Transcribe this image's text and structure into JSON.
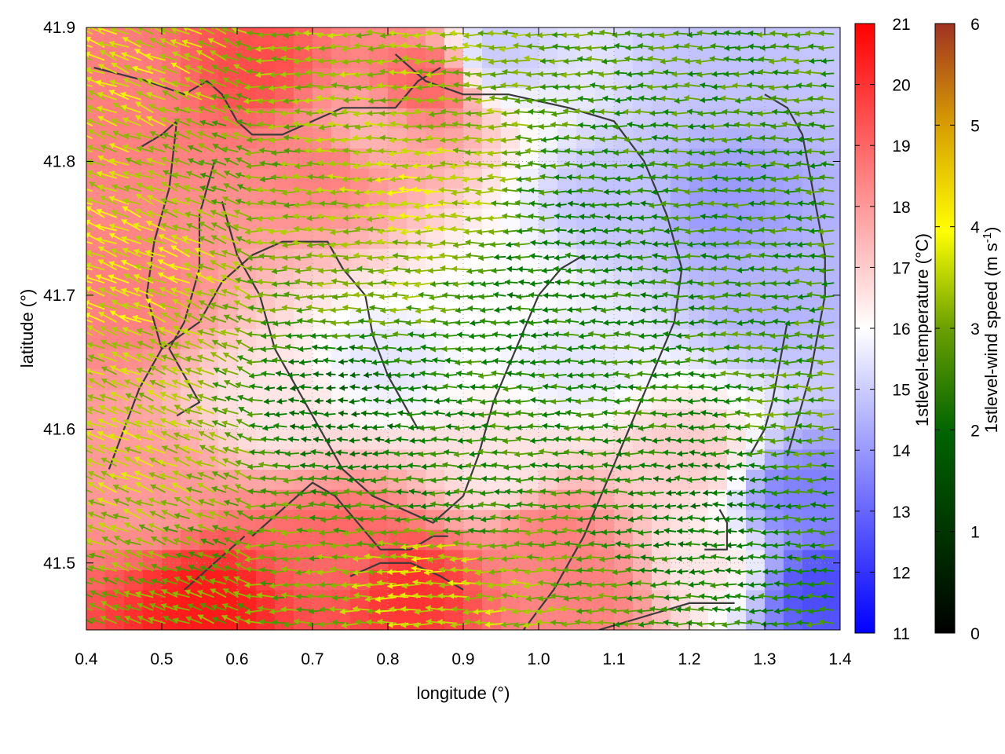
{
  "chart_data": {
    "type": "heatmap",
    "subtype": "field-map-with-wind-vectors",
    "title": "",
    "xlabel": "longitude (°)",
    "ylabel": "latitude (°)",
    "xlim": [
      0.4,
      1.4
    ],
    "ylim": [
      41.45,
      41.9
    ],
    "x_ticks": [
      0.4,
      0.5,
      0.6,
      0.7,
      0.8,
      0.9,
      1.0,
      1.1,
      1.2,
      1.3,
      1.4
    ],
    "x_tick_labels": [
      "0.4",
      "0.5",
      "0.6",
      "0.7",
      "0.8",
      "0.9",
      "1.0",
      "1.1",
      "1.2",
      "1.3",
      "1.4"
    ],
    "y_ticks": [
      41.5,
      41.6,
      41.7,
      41.8,
      41.9
    ],
    "y_tick_labels": [
      "41.5",
      "41.6",
      "41.7",
      "41.8",
      "41.9"
    ],
    "grid": true,
    "temperature": {
      "label": "1stlevel-temperature (°C)",
      "range": [
        11,
        21
      ],
      "ticks": [
        "11",
        "12",
        "13",
        "14",
        "15",
        "16",
        "17",
        "18",
        "19",
        "20",
        "21"
      ],
      "colormap": [
        "#0000ff",
        "#ffffff",
        "#ff0000"
      ],
      "field": [
        {
          "x": 0.45,
          "y": 41.85,
          "value": 18.5
        },
        {
          "x": 0.62,
          "y": 41.87,
          "value": 19.5
        },
        {
          "x": 0.85,
          "y": 41.86,
          "value": 19.0
        },
        {
          "x": 0.72,
          "y": 41.8,
          "value": 18.5
        },
        {
          "x": 0.45,
          "y": 41.7,
          "value": 18.5
        },
        {
          "x": 0.48,
          "y": 41.55,
          "value": 18.0
        },
        {
          "x": 0.56,
          "y": 41.47,
          "value": 20.5
        },
        {
          "x": 0.83,
          "y": 41.48,
          "value": 20.0
        },
        {
          "x": 0.73,
          "y": 41.51,
          "value": 19.0
        },
        {
          "x": 1.02,
          "y": 41.52,
          "value": 18.5
        },
        {
          "x": 1.07,
          "y": 41.48,
          "value": 18.5
        },
        {
          "x": 0.77,
          "y": 41.82,
          "value": 17.5
        },
        {
          "x": 0.65,
          "y": 41.62,
          "value": 16.5
        },
        {
          "x": 0.8,
          "y": 41.65,
          "value": 15.5
        },
        {
          "x": 0.95,
          "y": 41.7,
          "value": 16.0
        },
        {
          "x": 1.05,
          "y": 41.65,
          "value": 15.5
        },
        {
          "x": 1.1,
          "y": 41.77,
          "value": 14.8
        },
        {
          "x": 1.25,
          "y": 41.77,
          "value": 14.0
        },
        {
          "x": 1.3,
          "y": 41.7,
          "value": 14.5
        },
        {
          "x": 1.25,
          "y": 41.88,
          "value": 14.8
        },
        {
          "x": 0.95,
          "y": 41.88,
          "value": 15.0
        },
        {
          "x": 1.35,
          "y": 41.55,
          "value": 13.5
        },
        {
          "x": 1.38,
          "y": 41.48,
          "value": 12.5
        },
        {
          "x": 1.2,
          "y": 41.58,
          "value": 17.0
        },
        {
          "x": 1.22,
          "y": 41.5,
          "value": 16.5
        },
        {
          "x": 0.95,
          "y": 41.57,
          "value": 16.5
        }
      ]
    },
    "wind_speed": {
      "label": "1stlevel-wind speed (m s-1)",
      "label_base": "1stlevel-wind speed (m s",
      "label_sup": "-1",
      "label_end": ")",
      "range": [
        0,
        6
      ],
      "ticks": [
        "0",
        "1",
        "2",
        "3",
        "4",
        "5",
        "6"
      ],
      "colormap": [
        "#000000",
        "#005500",
        "#008000",
        "#80b000",
        "#ffff00",
        "#e0a000",
        "#a03020"
      ],
      "direction": "mostly westward, turning toward southwest in the west",
      "samples": [
        {
          "x": 0.45,
          "y": 41.85,
          "speed": 3.6
        },
        {
          "x": 0.45,
          "y": 41.72,
          "speed": 3.8
        },
        {
          "x": 0.48,
          "y": 41.58,
          "speed": 3.4
        },
        {
          "x": 0.6,
          "y": 41.8,
          "speed": 2.8
        },
        {
          "x": 0.8,
          "y": 41.85,
          "speed": 3.2
        },
        {
          "x": 0.8,
          "y": 41.72,
          "speed": 3.0
        },
        {
          "x": 0.85,
          "y": 41.77,
          "speed": 3.6
        },
        {
          "x": 1.0,
          "y": 41.7,
          "speed": 2.0
        },
        {
          "x": 1.1,
          "y": 41.75,
          "speed": 2.0
        },
        {
          "x": 1.2,
          "y": 41.8,
          "speed": 2.4
        },
        {
          "x": 0.75,
          "y": 41.62,
          "speed": 1.5
        },
        {
          "x": 0.9,
          "y": 41.55,
          "speed": 2.2
        },
        {
          "x": 1.25,
          "y": 41.55,
          "speed": 1.8
        },
        {
          "x": 1.35,
          "y": 41.6,
          "speed": 2.6
        },
        {
          "x": 0.6,
          "y": 41.5,
          "speed": 2.8
        },
        {
          "x": 0.88,
          "y": 41.49,
          "speed": 3.6
        }
      ]
    },
    "coastline_contours": [
      [
        [
          0.41,
          41.87
        ],
        [
          0.48,
          41.86
        ],
        [
          0.53,
          41.85
        ],
        [
          0.56,
          41.86
        ],
        [
          0.58,
          41.85
        ],
        [
          0.6,
          41.83
        ],
        [
          0.62,
          41.82
        ],
        [
          0.66,
          41.82
        ],
        [
          0.7,
          41.83
        ],
        [
          0.74,
          41.84
        ],
        [
          0.78,
          41.84
        ],
        [
          0.81,
          41.84
        ],
        [
          0.84,
          41.86
        ],
        [
          0.87,
          41.87
        ]
      ],
      [
        [
          0.57,
          41.8
        ],
        [
          0.55,
          41.76
        ],
        [
          0.55,
          41.72
        ],
        [
          0.53,
          41.68
        ],
        [
          0.51,
          41.66
        ],
        [
          0.53,
          41.64
        ],
        [
          0.55,
          41.62
        ],
        [
          0.52,
          41.61
        ]
      ],
      [
        [
          0.47,
          41.81
        ],
        [
          0.5,
          41.82
        ],
        [
          0.52,
          41.83
        ],
        [
          0.51,
          41.78
        ],
        [
          0.49,
          41.74
        ],
        [
          0.48,
          41.7
        ],
        [
          0.5,
          41.66
        ]
      ],
      [
        [
          0.43,
          41.57
        ],
        [
          0.45,
          41.6
        ],
        [
          0.47,
          41.63
        ],
        [
          0.5,
          41.66
        ],
        [
          0.55,
          41.68
        ],
        [
          0.58,
          41.71
        ],
        [
          0.62,
          41.73
        ],
        [
          0.66,
          41.74
        ],
        [
          0.69,
          41.74
        ],
        [
          0.72,
          41.74
        ],
        [
          0.74,
          41.72
        ],
        [
          0.77,
          41.7
        ],
        [
          0.78,
          41.67
        ],
        [
          0.8,
          41.64
        ],
        [
          0.82,
          41.62
        ],
        [
          0.84,
          41.6
        ]
      ],
      [
        [
          0.58,
          41.77
        ],
        [
          0.6,
          41.73
        ],
        [
          0.63,
          41.7
        ],
        [
          0.65,
          41.66
        ],
        [
          0.68,
          41.63
        ],
        [
          0.71,
          41.6
        ],
        [
          0.74,
          41.57
        ],
        [
          0.78,
          41.55
        ],
        [
          0.82,
          41.54
        ],
        [
          0.86,
          41.53
        ],
        [
          0.9,
          41.55
        ],
        [
          0.92,
          41.58
        ],
        [
          0.94,
          41.62
        ],
        [
          0.97,
          41.66
        ],
        [
          1.0,
          41.7
        ],
        [
          1.03,
          41.72
        ],
        [
          1.06,
          41.73
        ]
      ],
      [
        [
          0.81,
          41.88
        ],
        [
          0.85,
          41.86
        ],
        [
          0.9,
          41.85
        ],
        [
          0.96,
          41.85
        ],
        [
          1.04,
          41.84
        ],
        [
          1.1,
          41.83
        ],
        [
          1.14,
          41.8
        ],
        [
          1.17,
          41.76
        ],
        [
          1.19,
          41.72
        ],
        [
          1.18,
          41.68
        ],
        [
          1.15,
          41.64
        ],
        [
          1.12,
          41.6
        ],
        [
          1.09,
          41.56
        ],
        [
          1.06,
          41.52
        ],
        [
          1.02,
          41.48
        ],
        [
          0.98,
          41.45
        ]
      ],
      [
        [
          0.62,
          41.52
        ],
        [
          0.66,
          41.54
        ],
        [
          0.7,
          41.56
        ],
        [
          0.73,
          41.55
        ],
        [
          0.76,
          41.53
        ],
        [
          0.79,
          41.51
        ],
        [
          0.83,
          41.51
        ],
        [
          0.86,
          41.52
        ],
        [
          0.88,
          41.52
        ]
      ],
      [
        [
          0.53,
          41.48
        ],
        [
          0.57,
          41.5
        ],
        [
          0.61,
          41.52
        ]
      ],
      [
        [
          0.75,
          41.49
        ],
        [
          0.79,
          41.5
        ],
        [
          0.83,
          41.5
        ],
        [
          0.87,
          41.49
        ],
        [
          0.9,
          41.48
        ]
      ],
      [
        [
          1.08,
          41.45
        ],
        [
          1.14,
          41.46
        ],
        [
          1.2,
          41.47
        ],
        [
          1.26,
          41.47
        ]
      ],
      [
        [
          1.22,
          41.51
        ],
        [
          1.25,
          41.51
        ],
        [
          1.25,
          41.53
        ],
        [
          1.24,
          41.54
        ]
      ],
      [
        [
          1.3,
          41.85
        ],
        [
          1.33,
          41.84
        ],
        [
          1.35,
          41.82
        ],
        [
          1.36,
          41.79
        ],
        [
          1.37,
          41.76
        ],
        [
          1.38,
          41.73
        ],
        [
          1.38,
          41.7
        ],
        [
          1.37,
          41.67
        ],
        [
          1.36,
          41.64
        ],
        [
          1.35,
          41.62
        ],
        [
          1.34,
          41.6
        ],
        [
          1.33,
          41.58
        ]
      ],
      [
        [
          1.28,
          41.58
        ],
        [
          1.3,
          41.6
        ],
        [
          1.31,
          41.62
        ],
        [
          1.32,
          41.65
        ],
        [
          1.33,
          41.68
        ]
      ]
    ]
  }
}
